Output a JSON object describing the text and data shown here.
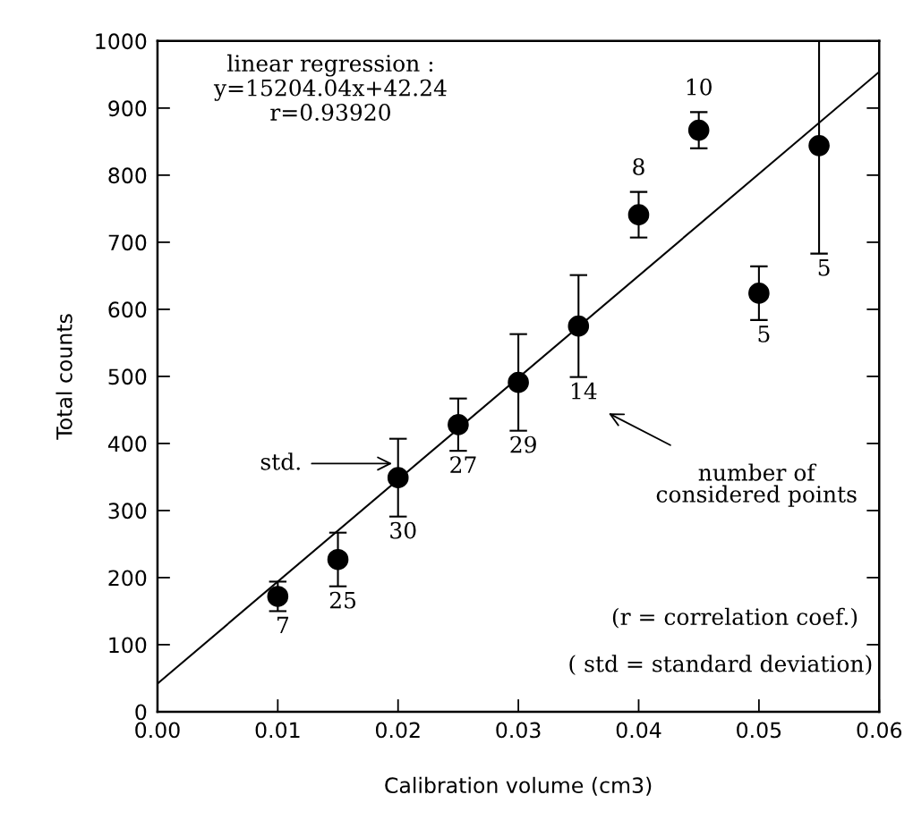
{
  "chart_data": {
    "type": "scatter",
    "xlabel": "Calibration volume (cm3)",
    "ylabel": "Total counts",
    "xlim": [
      0,
      0.06
    ],
    "ylim": [
      0,
      1000
    ],
    "xticks": [
      {
        "value": 0,
        "label": "0.00"
      },
      {
        "value": 0.01,
        "label": "0.01"
      },
      {
        "value": 0.02,
        "label": "0.02"
      },
      {
        "value": 0.03,
        "label": "0.03"
      },
      {
        "value": 0.04,
        "label": "0.04"
      },
      {
        "value": 0.05,
        "label": "0.05"
      },
      {
        "value": 0.06,
        "label": "0.06"
      }
    ],
    "yticks": [
      0,
      100,
      200,
      300,
      400,
      500,
      600,
      700,
      800,
      900,
      1000
    ],
    "grid": false,
    "marker": "circle",
    "series": [
      {
        "color": "#000000",
        "x": [
          0.01,
          0.015,
          0.02,
          0.025,
          0.03,
          0.035,
          0.04,
          0.045,
          0.05,
          0.055
        ],
        "values": [
          172,
          227,
          349,
          428,
          491,
          575,
          741,
          867,
          624,
          844
        ],
        "errors": [
          22,
          40,
          58,
          39,
          72,
          76,
          34,
          27,
          40,
          [
            683,
            1000
          ]
        ]
      },
      {
        "type": "line",
        "color": "#000000",
        "x": [
          0,
          0.06
        ],
        "values": [
          42,
          954
        ],
        "marker": "none"
      }
    ],
    "annotations": [
      "linear regression :\ny=15204.04x+42.24\nr=0.93920",
      "std.",
      "number of\nconsidered points",
      "(r = correlation coef.)",
      "( std = standard deviation)",
      {
        "text": "7",
        "x": 0.01,
        "y": 150
      },
      {
        "text": "25",
        "x": 0.015,
        "y": 187
      },
      {
        "text": "30",
        "x": 0.02,
        "y": 291
      },
      {
        "text": "27",
        "x": 0.025,
        "y": 389
      },
      {
        "text": "29",
        "x": 0.03,
        "y": 419
      },
      {
        "text": "14",
        "x": 0.035,
        "y": 499
      },
      {
        "text": "8",
        "x": 0.04,
        "y": 775
      },
      {
        "text": "10",
        "x": 0.045,
        "y": 894
      },
      {
        "text": "5",
        "x": 0.05,
        "y": 584
      },
      {
        "text": "5",
        "x": 0.055,
        "y": 683
      }
    ]
  }
}
